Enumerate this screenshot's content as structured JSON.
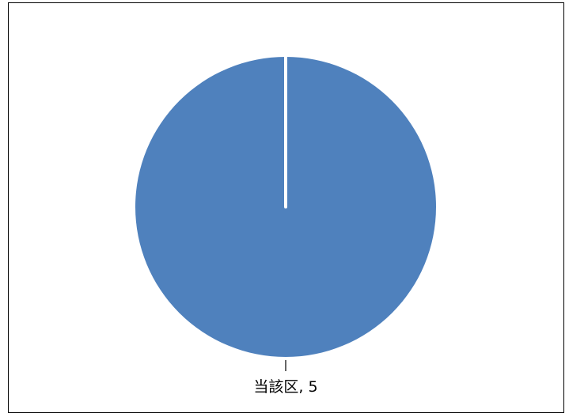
{
  "chart_data": {
    "type": "pie",
    "slices": [
      {
        "label": "当該区",
        "value": 5,
        "color": "#4f81bd",
        "data_label": "当該区, 5"
      }
    ]
  }
}
